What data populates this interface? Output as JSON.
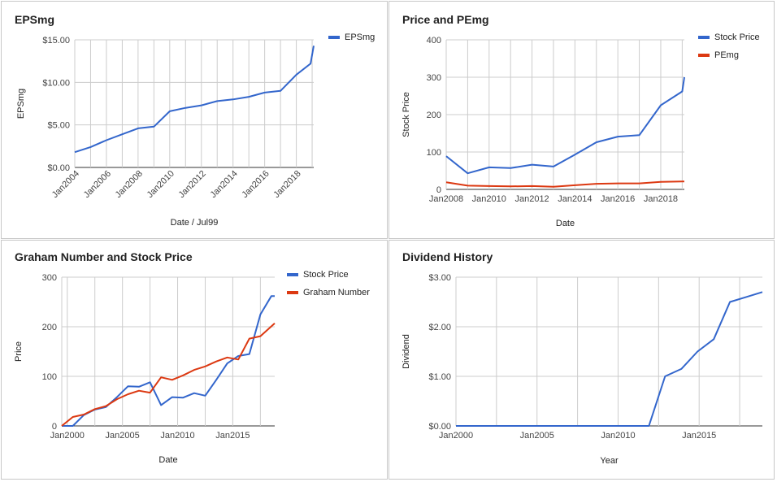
{
  "colors": {
    "blue": "#3366cc",
    "red": "#dc3912",
    "grid": "#cccccc",
    "axis": "#333333"
  },
  "chart_data": [
    {
      "type": "line",
      "title": "EPSmg",
      "xlabel": "Date / Jul99",
      "ylabel": "EPSmg",
      "x_ticks": [
        "Jan2004",
        "Jan2006",
        "Jan2008",
        "Jan2010",
        "Jan2012",
        "Jan2014",
        "Jan2016",
        "Jan2018"
      ],
      "x_tick_years": [
        2004,
        2006,
        2008,
        2010,
        2012,
        2014,
        2016,
        2018
      ],
      "xlim": [
        2004,
        2019.1
      ],
      "y_ticks": [
        "$0.00",
        "$5.00",
        "$10.00",
        "$15.00"
      ],
      "y_tick_values": [
        0,
        5,
        10,
        15
      ],
      "ylim": [
        0,
        15
      ],
      "legend": "right",
      "series": [
        {
          "name": "EPSmg",
          "color": "#3366cc",
          "x": [
            2004,
            2005,
            2006,
            2007,
            2008,
            2009,
            2010,
            2011,
            2012,
            2013,
            2014,
            2015,
            2016,
            2017,
            2018,
            2018.9,
            2019.1
          ],
          "values": [
            1.8,
            2.4,
            3.2,
            3.9,
            4.6,
            4.8,
            6.6,
            7.0,
            7.3,
            7.8,
            8.0,
            8.3,
            8.8,
            9.0,
            10.9,
            12.2,
            14.3
          ]
        }
      ]
    },
    {
      "type": "line",
      "title": "Price and PEmg",
      "xlabel": "Date",
      "ylabel": "Stock Price",
      "x_ticks": [
        "Jan2008",
        "Jan2010",
        "Jan2012",
        "Jan2014",
        "Jan2016",
        "Jan2018"
      ],
      "x_tick_years": [
        2008,
        2010,
        2012,
        2014,
        2016,
        2018
      ],
      "xlim": [
        2008,
        2019.1
      ],
      "y_ticks": [
        "0",
        "100",
        "200",
        "300",
        "400"
      ],
      "y_tick_values": [
        0,
        100,
        200,
        300,
        400
      ],
      "ylim": [
        0,
        400
      ],
      "legend": "right",
      "series": [
        {
          "name": "Stock Price",
          "color": "#3366cc",
          "x": [
            2008,
            2009,
            2010,
            2011,
            2012,
            2013,
            2014,
            2015,
            2016,
            2017,
            2018,
            2019,
            2019.1
          ],
          "values": [
            89,
            43,
            59,
            57,
            66,
            61,
            93,
            126,
            141,
            145,
            225,
            262,
            300
          ]
        },
        {
          "name": "PEmg",
          "color": "#dc3912",
          "x": [
            2008,
            2009,
            2010,
            2011,
            2012,
            2013,
            2014,
            2015,
            2016,
            2017,
            2018,
            2019,
            2019.1
          ],
          "values": [
            19,
            10,
            9,
            8,
            9,
            7,
            11,
            15,
            16,
            16,
            20,
            21,
            21
          ]
        }
      ]
    },
    {
      "type": "line",
      "title": "Graham Number and Stock Price",
      "xlabel": "Date",
      "ylabel": "Price",
      "x_ticks": [
        "Jan2000",
        "Jan2005",
        "Jan2010",
        "Jan2015"
      ],
      "x_tick_years": [
        2000,
        2005,
        2010,
        2015
      ],
      "xlim": [
        1999.5,
        2018.8
      ],
      "y_ticks": [
        "0",
        "100",
        "200",
        "300"
      ],
      "y_tick_values": [
        0,
        100,
        200,
        300
      ],
      "ylim": [
        0,
        300
      ],
      "legend": "right",
      "series": [
        {
          "name": "Stock Price",
          "color": "#3366cc",
          "x": [
            1999.5,
            2000.5,
            2001.5,
            2002.5,
            2003.5,
            2004.5,
            2005.5,
            2006.5,
            2007.5,
            2008.5,
            2009.5,
            2010.5,
            2011.5,
            2012.5,
            2013.5,
            2014.5,
            2015.5,
            2016.5,
            2017.5,
            2018.5,
            2018.8
          ],
          "values": [
            0,
            0,
            22,
            33,
            38,
            58,
            80,
            79,
            88,
            42,
            58,
            57,
            66,
            61,
            93,
            126,
            141,
            145,
            225,
            262,
            262
          ]
        },
        {
          "name": "Graham Number",
          "color": "#dc3912",
          "x": [
            1999.5,
            2000.5,
            2001.5,
            2002.5,
            2003.5,
            2004.5,
            2005.5,
            2006.5,
            2007.5,
            2008.5,
            2009.5,
            2010.5,
            2011.5,
            2012.5,
            2013.5,
            2014.5,
            2015.5,
            2016.5,
            2017.5,
            2018.8
          ],
          "values": [
            0,
            18,
            23,
            34,
            40,
            54,
            64,
            71,
            67,
            98,
            93,
            102,
            113,
            120,
            130,
            138,
            134,
            176,
            181,
            207
          ]
        }
      ]
    },
    {
      "type": "line",
      "title": "Dividend History",
      "xlabel": "Year",
      "ylabel": "Dividend",
      "x_ticks": [
        "Jan2000",
        "Jan2005",
        "Jan2010",
        "Jan2015"
      ],
      "x_tick_years": [
        2000,
        2005,
        2010,
        2015
      ],
      "xlim": [
        2000,
        2018.9
      ],
      "y_ticks": [
        "$0.00",
        "$1.00",
        "$2.00",
        "$3.00"
      ],
      "y_tick_values": [
        0,
        1,
        2,
        3
      ],
      "ylim": [
        0,
        3
      ],
      "legend": "none",
      "series": [
        {
          "name": "",
          "color": "#3366cc",
          "x": [
            2000,
            2011.9,
            2012.9,
            2013.9,
            2014.9,
            2015.9,
            2016.9,
            2017.9,
            2018.9
          ],
          "values": [
            0,
            0,
            1.0,
            1.15,
            1.5,
            1.75,
            2.5,
            2.6,
            2.7
          ]
        }
      ]
    }
  ]
}
